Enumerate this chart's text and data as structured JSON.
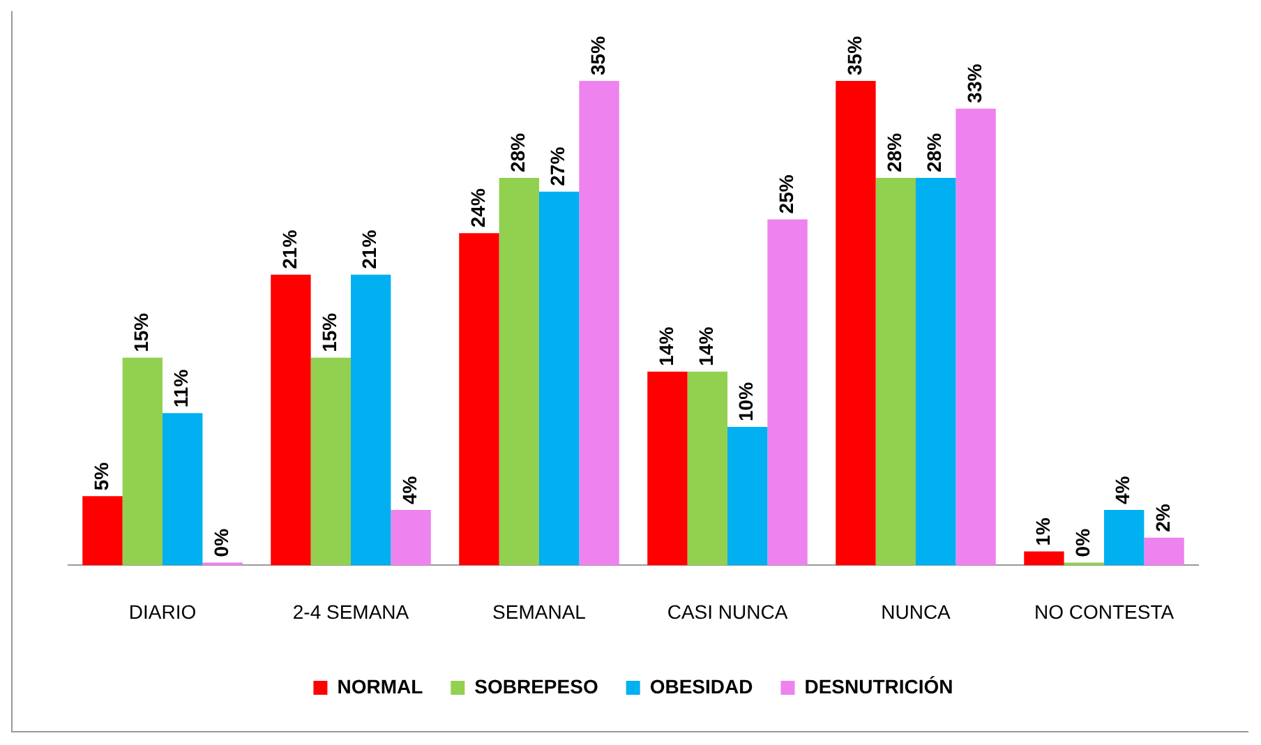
{
  "chart_data": {
    "type": "bar",
    "categories": [
      "DIARIO",
      "2-4 SEMANA",
      "SEMANAL",
      "CASI NUNCA",
      "NUNCA",
      "NO CONTESTA"
    ],
    "series": [
      {
        "name": "NORMAL",
        "color": "#ff0000",
        "values": [
          5,
          21,
          24,
          14,
          35,
          1
        ],
        "value_labels": [
          "5%",
          "21%",
          "24%",
          "14%",
          "35%",
          "1%"
        ]
      },
      {
        "name": "SOBREPESO",
        "color": "#92d050",
        "values": [
          15,
          15,
          28,
          14,
          28,
          0
        ],
        "value_labels": [
          "15%",
          "15%",
          "28%",
          "14%",
          "28%",
          "0%"
        ]
      },
      {
        "name": "OBESIDAD",
        "color": "#00b0f0",
        "values": [
          11,
          21,
          27,
          10,
          28,
          4
        ],
        "value_labels": [
          "11%",
          "21%",
          "27%",
          "10%",
          "28%",
          "4%"
        ]
      },
      {
        "name": "DESNUTRICIÓN",
        "color": "#ee82ee",
        "values": [
          0,
          4,
          35,
          25,
          33,
          2
        ],
        "value_labels": [
          "0%",
          "4%",
          "35%",
          "25%",
          "33%",
          "2%"
        ]
      }
    ],
    "legend": "bottom",
    "tick_labels": "x",
    "grid": false
  }
}
